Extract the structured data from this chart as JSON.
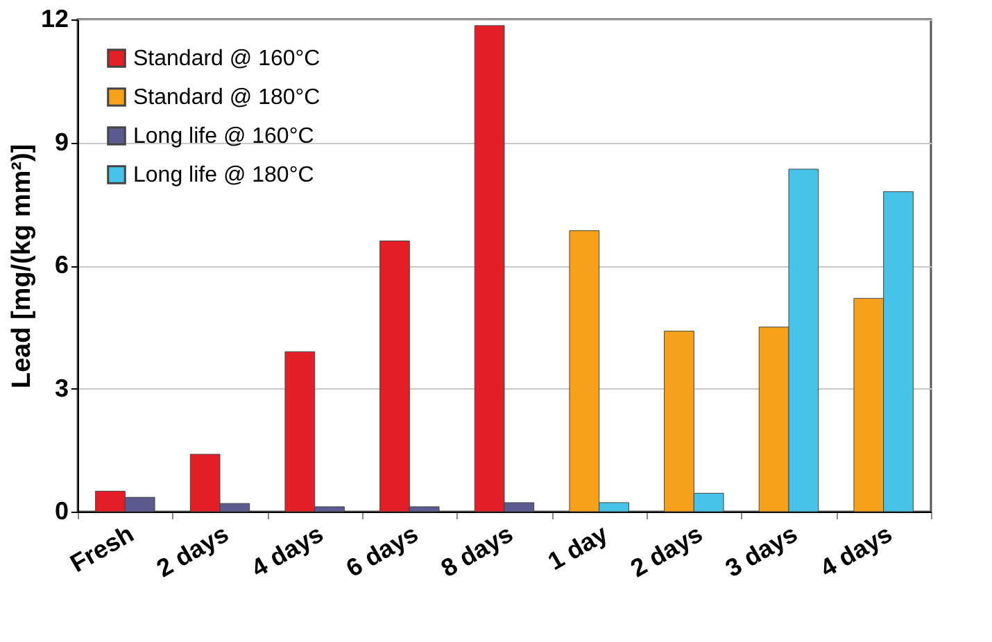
{
  "chart_data": {
    "type": "bar",
    "ylabel": "Lead [mg/(kg mm²)]",
    "categories": [
      "Fresh",
      "2 days",
      "4 days",
      "6 days",
      "8 days",
      "1 day",
      "2 days",
      "3 days",
      "4 days"
    ],
    "series": [
      {
        "name": "Standard @ 160°C",
        "color": "#e41e26",
        "values": [
          0.5,
          1.4,
          3.9,
          6.6,
          11.85,
          null,
          null,
          null,
          null
        ]
      },
      {
        "name": "Standard @ 180°C",
        "color": "#f7a11a",
        "values": [
          null,
          null,
          null,
          null,
          null,
          6.85,
          4.4,
          4.5,
          5.2
        ]
      },
      {
        "name": "Long life @ 160°C",
        "color": "#5b5b8f",
        "values": [
          0.35,
          0.2,
          0.12,
          0.12,
          0.22,
          null,
          null,
          null,
          null
        ]
      },
      {
        "name": "Long life @ 180°C",
        "color": "#47c3ea",
        "values": [
          null,
          null,
          null,
          null,
          null,
          0.22,
          0.45,
          8.35,
          7.8
        ]
      }
    ],
    "ylim": [
      0,
      12
    ],
    "yticks": [
      0,
      3,
      6,
      9,
      12
    ],
    "grid": "y",
    "legend": "top left"
  }
}
